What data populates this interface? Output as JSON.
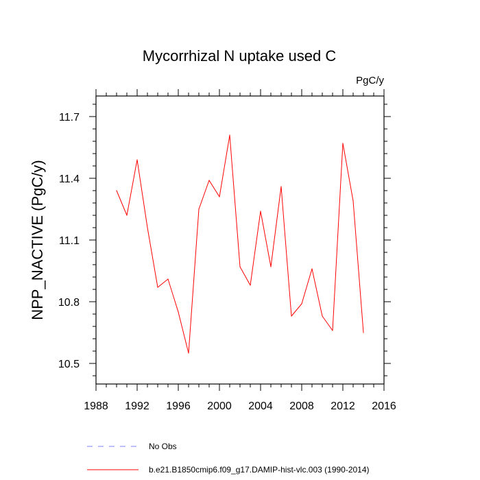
{
  "chart_data": {
    "type": "line",
    "title": "Mycorrhizal N uptake used C",
    "units": "PgC/y",
    "xlabel": "",
    "ylabel": "NPP_NACTIVE  (PgC/y)",
    "xlim": [
      1988,
      2016
    ],
    "ylim": [
      10.4,
      11.8
    ],
    "x_ticks": [
      1988,
      1992,
      1996,
      2000,
      2004,
      2008,
      2012,
      2016
    ],
    "x_tick_labels": [
      "1988",
      "1992",
      "1996",
      "2000",
      "2004",
      "2008",
      "2012",
      "2016"
    ],
    "y_ticks": [
      10.5,
      10.8,
      11.1,
      11.4,
      11.7
    ],
    "y_tick_labels": [
      "10.5",
      "10.8",
      "11.1",
      "11.4",
      "11.7"
    ],
    "grid": false,
    "legend_position": "bottom",
    "series": [
      {
        "name": "b.e21.B1850cmip6.f09_g17.DAMIP-hist-vlc.003 (1990-2014)",
        "color": "#ff0000",
        "style": "solid",
        "x": [
          1990,
          1991,
          1992,
          1993,
          1994,
          1995,
          1996,
          1997,
          1998,
          1999,
          2000,
          2001,
          2002,
          2003,
          2004,
          2005,
          2006,
          2007,
          2008,
          2009,
          2010,
          2011,
          2012,
          2013,
          2014
        ],
        "y": [
          11.34,
          11.22,
          11.49,
          11.16,
          10.87,
          10.91,
          10.75,
          10.55,
          11.25,
          11.39,
          11.31,
          11.61,
          10.97,
          10.88,
          11.24,
          10.97,
          11.36,
          10.73,
          10.79,
          10.96,
          10.73,
          10.66,
          11.57,
          11.29,
          10.65
        ]
      },
      {
        "name": "No Obs",
        "color": "#7f7fff",
        "style": "dashed",
        "x": [],
        "y": []
      }
    ]
  }
}
